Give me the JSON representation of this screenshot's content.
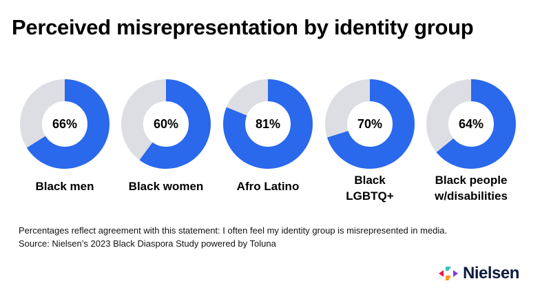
{
  "title": "Perceived misrepresentation by identity group",
  "colors": {
    "filled": "#2a68ec",
    "remainder": "#dcdee4",
    "text": "#000000",
    "logo_text": "#0d1b3e"
  },
  "chart_data": {
    "type": "pie",
    "subtype": "donut",
    "title": "Perceived misrepresentation by identity group",
    "categories": [
      "Black men",
      "Black women",
      "Afro Latino",
      "Black LGBTQ+",
      "Black people w/disabilities"
    ],
    "values": [
      66,
      60,
      81,
      70,
      64
    ],
    "unit": "%",
    "annotations": [
      "Percentages reflect agreement with this statement: I often feel my identity group is misrepresented in media."
    ],
    "legend": "none"
  },
  "groups": [
    {
      "label": "Black men",
      "label_lines": [
        "Black men"
      ],
      "value": 66,
      "pct": "66%"
    },
    {
      "label": "Black women",
      "label_lines": [
        "Black women"
      ],
      "value": 60,
      "pct": "60%"
    },
    {
      "label": "Afro Latino",
      "label_lines": [
        "Afro Latino"
      ],
      "value": 81,
      "pct": "81%"
    },
    {
      "label": "Black LGBTQ+",
      "label_lines": [
        "Black",
        "LGBTQ+"
      ],
      "value": 70,
      "pct": "70%"
    },
    {
      "label": "Black people w/disabilities",
      "label_lines": [
        "Black people",
        "w/disabilities"
      ],
      "value": 64,
      "pct": "64%"
    }
  ],
  "footnote": {
    "note": "Percentages reflect agreement with this statement: I often feel my identity group is misrepresented in media.",
    "source": "Source: Nielsen’s 2023 Black Diaspora Study powered by Toluna"
  },
  "logo": {
    "text": "Nielsen",
    "icon": "nielsen-arrows-icon"
  }
}
